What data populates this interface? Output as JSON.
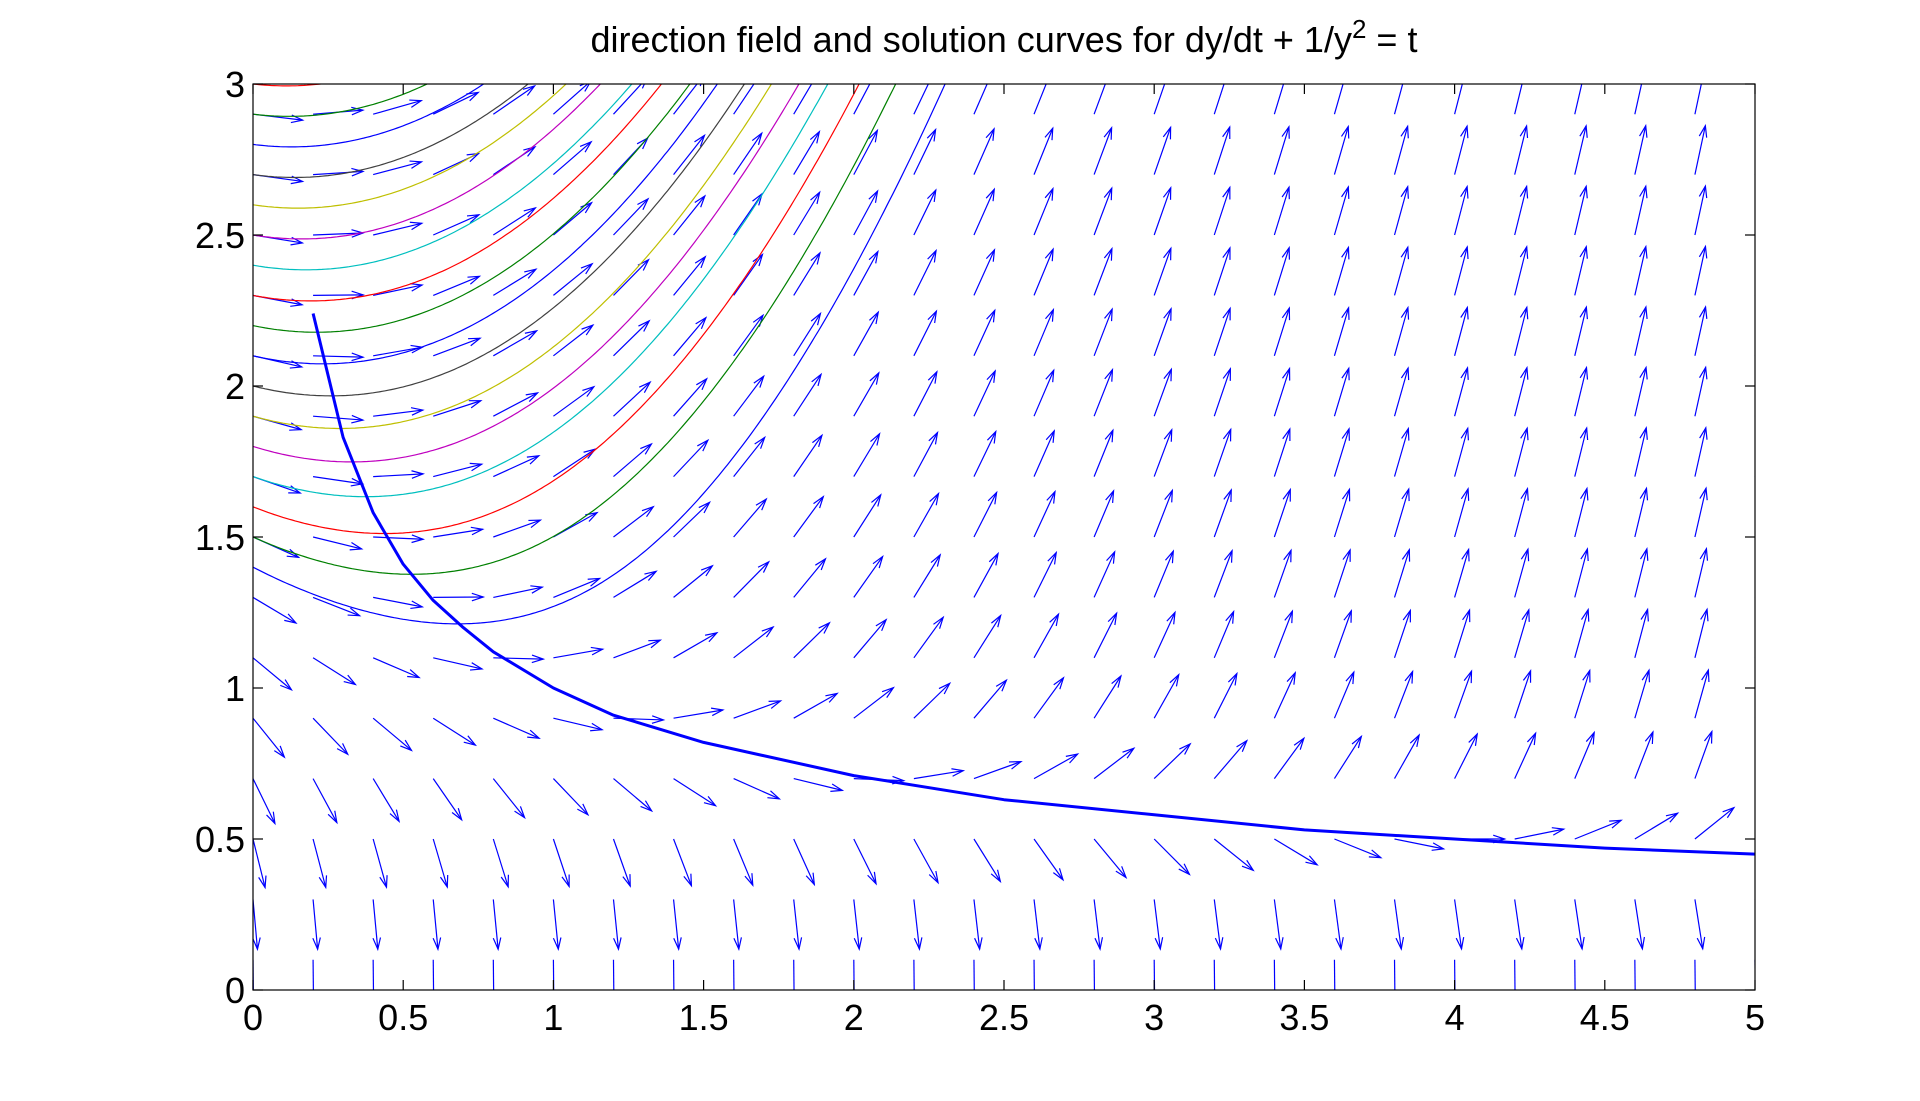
{
  "chart_data": {
    "type": "line",
    "title": "direction field and solution curves for dy/dt + 1/y",
    "title_superscript": "2",
    "title_suffix": " = t",
    "xlabel": "",
    "ylabel": "",
    "xlim": [
      0,
      5
    ],
    "ylim": [
      0,
      3
    ],
    "grid": false,
    "x_ticks": [
      0,
      0.5,
      1,
      1.5,
      2,
      2.5,
      3,
      3.5,
      4,
      4.5,
      5
    ],
    "x_tick_labels": [
      "0",
      "0.5",
      "1",
      "1.5",
      "2",
      "2.5",
      "3",
      "3.5",
      "4",
      "4.5",
      "5"
    ],
    "y_ticks": [
      0,
      0.5,
      1,
      1.5,
      2,
      2.5,
      3
    ],
    "y_tick_labels": [
      "0",
      "0.5",
      "1",
      "1.5",
      "2",
      "2.5",
      "3"
    ],
    "direction_field": {
      "equation": "dy/dt = t - 1/y^2",
      "t_values": [
        0,
        0.2,
        0.4,
        0.6,
        0.8,
        1.0,
        1.2,
        1.4,
        1.6,
        1.8,
        2.0,
        2.2,
        2.4,
        2.6,
        2.8,
        3.0,
        3.2,
        3.4,
        3.6,
        3.8,
        4.0,
        4.2,
        4.4,
        4.6,
        4.8,
        5.0
      ],
      "y_values": [
        0.1,
        0.3,
        0.5,
        0.7,
        0.9,
        1.1,
        1.3,
        1.5,
        1.7,
        1.9,
        2.1,
        2.3,
        2.5,
        2.7,
        2.9
      ],
      "color": "#0000ff"
    },
    "solution_curves": {
      "initial_t": 0,
      "initial_y": [
        1.4,
        1.5,
        1.6,
        1.7,
        1.8,
        1.9,
        2.0,
        2.1,
        2.2,
        2.3,
        2.4,
        2.5,
        2.6,
        2.7,
        2.8,
        2.9,
        3.0
      ],
      "colors": [
        "#0000ff",
        "#008000",
        "#ff0000",
        "#00bfbf",
        "#bf00bf",
        "#bfbf00",
        "#404040"
      ]
    },
    "highlight_curve": {
      "color": "#0000ff",
      "t_start": 0.2,
      "t_end": 5,
      "x": [
        0.2,
        0.3,
        0.4,
        0.5,
        0.6,
        0.7,
        0.8,
        1.0,
        1.2,
        1.5,
        2.0,
        2.5,
        3.0,
        3.5,
        4.0,
        4.5,
        5.0
      ],
      "y": [
        2.24,
        1.83,
        1.58,
        1.41,
        1.29,
        1.2,
        1.12,
        1.0,
        0.91,
        0.82,
        0.71,
        0.63,
        0.58,
        0.53,
        0.5,
        0.47,
        0.45
      ]
    }
  }
}
